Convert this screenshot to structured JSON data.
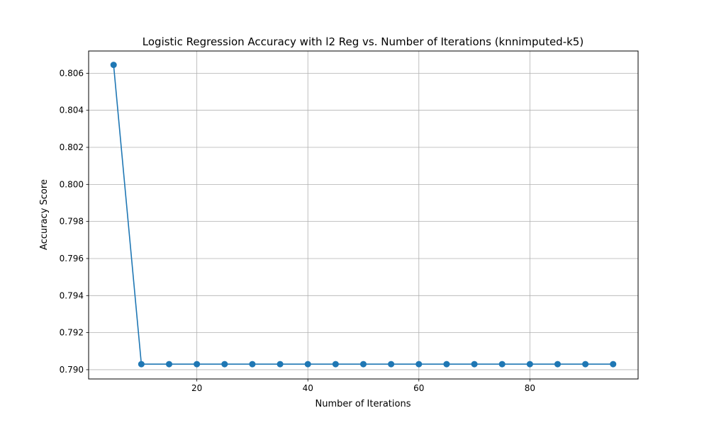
{
  "chart_data": {
    "type": "line",
    "title": "Logistic Regression Accuracy with l2 Reg vs. Number of Iterations (knnimputed-k5)",
    "xlabel": "Number of Iterations",
    "ylabel": "Accuracy Score",
    "xlim": [
      0.5,
      99.5
    ],
    "ylim": [
      0.7895,
      0.8072
    ],
    "xticks": [
      20,
      40,
      60,
      80
    ],
    "xtick_labels": [
      "20",
      "40",
      "60",
      "80"
    ],
    "yticks": [
      0.79,
      0.792,
      0.794,
      0.796,
      0.798,
      0.8,
      0.802,
      0.804,
      0.806
    ],
    "ytick_labels": [
      "0.790",
      "0.792",
      "0.794",
      "0.796",
      "0.798",
      "0.800",
      "0.802",
      "0.804",
      "0.806"
    ],
    "grid": true,
    "series_color": "#1f77b4",
    "series": [
      {
        "x": [
          5,
          10,
          15,
          20,
          25,
          30,
          35,
          40,
          45,
          50,
          55,
          60,
          65,
          70,
          75,
          80,
          85,
          90,
          95
        ],
        "values": [
          0.80645,
          0.7903,
          0.7903,
          0.7903,
          0.7903,
          0.7903,
          0.7903,
          0.7903,
          0.7903,
          0.7903,
          0.7903,
          0.7903,
          0.7903,
          0.7903,
          0.7903,
          0.7903,
          0.7903,
          0.7903,
          0.7903
        ]
      }
    ]
  }
}
